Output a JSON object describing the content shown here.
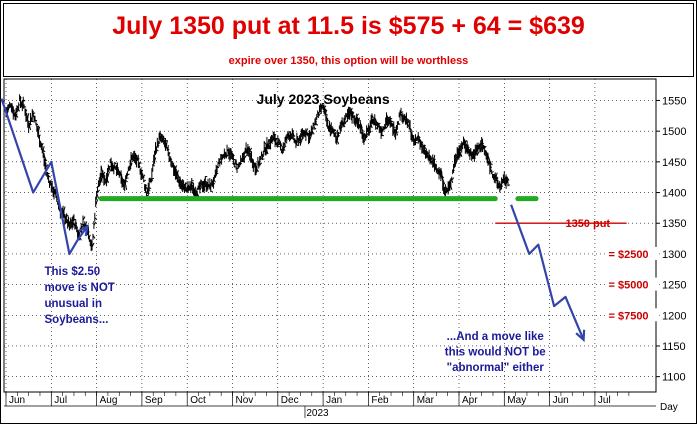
{
  "header": {
    "headline": "July 1350 put at 11.5 is $575 + 64 = $639",
    "subline": "expire over 1350, this option will be worthless"
  },
  "chart_data": {
    "type": "bar",
    "title": "July 2023 Soybeans",
    "xlabel": "",
    "ylabel": "",
    "ylim": [
      1075,
      1585
    ],
    "y_ticks": [
      1100,
      1150,
      1200,
      1250,
      1300,
      1350,
      1400,
      1450,
      1500,
      1550
    ],
    "x_ticks": [
      "Jun",
      "Jul",
      "Aug",
      "Sep",
      "Oct",
      "Nov",
      "Dec",
      "Jan",
      "Feb",
      "Mar",
      "Apr",
      "May",
      "Jun",
      "Jul"
    ],
    "year_label": "2023",
    "x_axis_unit": "Day",
    "grid": true,
    "support_line": {
      "level": 1390,
      "from_month": 2.1,
      "to_month": 10.8
    },
    "support_line_extension": {
      "level": 1390,
      "from_month": 11.3,
      "to_month": 11.7
    },
    "put_strike": {
      "label": "1350 put",
      "level": 1350,
      "from_month": 10.8,
      "to_month": 13.7
    },
    "value_markers": [
      {
        "label": "= $2500",
        "level": 1300
      },
      {
        "label": "= $5000",
        "level": 1250
      },
      {
        "label": "= $7500",
        "level": 1200
      }
    ],
    "annotations": [
      {
        "lines": [
          "This $2.50",
          "move is NOT",
          "unusual in",
          "Soybeans..."
        ]
      },
      {
        "lines": [
          "...And a move like",
          "this would NOT be",
          "\"abnormal\" either"
        ]
      }
    ],
    "arrow_past": [
      [
        -0.1,
        1553
      ],
      [
        0.6,
        1400
      ],
      [
        1.0,
        1450
      ],
      [
        1.4,
        1300
      ],
      [
        1.6,
        1325
      ],
      [
        1.8,
        1345
      ]
    ],
    "arrow_future": [
      [
        11.15,
        1380
      ],
      [
        11.55,
        1300
      ],
      [
        11.75,
        1315
      ],
      [
        12.1,
        1215
      ],
      [
        12.35,
        1230
      ],
      [
        12.75,
        1160
      ]
    ],
    "price_path": [
      [
        0.0,
        1530
      ],
      [
        0.1,
        1545
      ],
      [
        0.2,
        1525
      ],
      [
        0.3,
        1550
      ],
      [
        0.4,
        1540
      ],
      [
        0.5,
        1510
      ],
      [
        0.6,
        1530
      ],
      [
        0.7,
        1500
      ],
      [
        0.8,
        1470
      ],
      [
        0.9,
        1430
      ],
      [
        1.0,
        1410
      ],
      [
        1.1,
        1395
      ],
      [
        1.2,
        1370
      ],
      [
        1.3,
        1360
      ],
      [
        1.4,
        1345
      ],
      [
        1.5,
        1355
      ],
      [
        1.6,
        1330
      ],
      [
        1.7,
        1350
      ],
      [
        1.8,
        1340
      ],
      [
        1.9,
        1310
      ],
      [
        2.0,
        1400
      ],
      [
        2.1,
        1430
      ],
      [
        2.2,
        1420
      ],
      [
        2.3,
        1450
      ],
      [
        2.4,
        1440
      ],
      [
        2.5,
        1430
      ],
      [
        2.6,
        1410
      ],
      [
        2.7,
        1440
      ],
      [
        2.8,
        1460
      ],
      [
        2.9,
        1450
      ],
      [
        3.0,
        1430
      ],
      [
        3.1,
        1400
      ],
      [
        3.2,
        1420
      ],
      [
        3.3,
        1470
      ],
      [
        3.4,
        1490
      ],
      [
        3.5,
        1480
      ],
      [
        3.6,
        1460
      ],
      [
        3.7,
        1440
      ],
      [
        3.8,
        1420
      ],
      [
        3.9,
        1410
      ],
      [
        4.0,
        1405
      ],
      [
        4.1,
        1410
      ],
      [
        4.2,
        1400
      ],
      [
        4.3,
        1410
      ],
      [
        4.4,
        1415
      ],
      [
        4.5,
        1410
      ],
      [
        4.6,
        1420
      ],
      [
        4.7,
        1450
      ],
      [
        4.8,
        1460
      ],
      [
        4.9,
        1470
      ],
      [
        5.0,
        1455
      ],
      [
        5.1,
        1440
      ],
      [
        5.2,
        1450
      ],
      [
        5.3,
        1470
      ],
      [
        5.4,
        1460
      ],
      [
        5.5,
        1440
      ],
      [
        5.6,
        1450
      ],
      [
        5.7,
        1470
      ],
      [
        5.8,
        1480
      ],
      [
        5.9,
        1490
      ],
      [
        6.0,
        1480
      ],
      [
        6.1,
        1470
      ],
      [
        6.2,
        1490
      ],
      [
        6.3,
        1495
      ],
      [
        6.4,
        1480
      ],
      [
        6.5,
        1490
      ],
      [
        6.6,
        1500
      ],
      [
        6.7,
        1490
      ],
      [
        6.8,
        1510
      ],
      [
        6.9,
        1530
      ],
      [
        7.0,
        1540
      ],
      [
        7.1,
        1510
      ],
      [
        7.2,
        1500
      ],
      [
        7.3,
        1490
      ],
      [
        7.4,
        1510
      ],
      [
        7.5,
        1520
      ],
      [
        7.6,
        1530
      ],
      [
        7.7,
        1520
      ],
      [
        7.8,
        1510
      ],
      [
        7.9,
        1490
      ],
      [
        8.0,
        1500
      ],
      [
        8.1,
        1520
      ],
      [
        8.2,
        1510
      ],
      [
        8.3,
        1500
      ],
      [
        8.4,
        1520
      ],
      [
        8.5,
        1510
      ],
      [
        8.6,
        1500
      ],
      [
        8.7,
        1530
      ],
      [
        8.8,
        1520
      ],
      [
        8.9,
        1510
      ],
      [
        9.0,
        1480
      ],
      [
        9.1,
        1490
      ],
      [
        9.2,
        1470
      ],
      [
        9.3,
        1460
      ],
      [
        9.4,
        1450
      ],
      [
        9.5,
        1440
      ],
      [
        9.6,
        1430
      ],
      [
        9.7,
        1400
      ],
      [
        9.8,
        1410
      ],
      [
        9.9,
        1450
      ],
      [
        10.0,
        1470
      ],
      [
        10.1,
        1480
      ],
      [
        10.2,
        1470
      ],
      [
        10.3,
        1460
      ],
      [
        10.4,
        1470
      ],
      [
        10.5,
        1480
      ],
      [
        10.6,
        1460
      ],
      [
        10.7,
        1440
      ],
      [
        10.8,
        1420
      ],
      [
        10.9,
        1410
      ],
      [
        11.0,
        1420
      ],
      [
        11.1,
        1415
      ]
    ]
  }
}
